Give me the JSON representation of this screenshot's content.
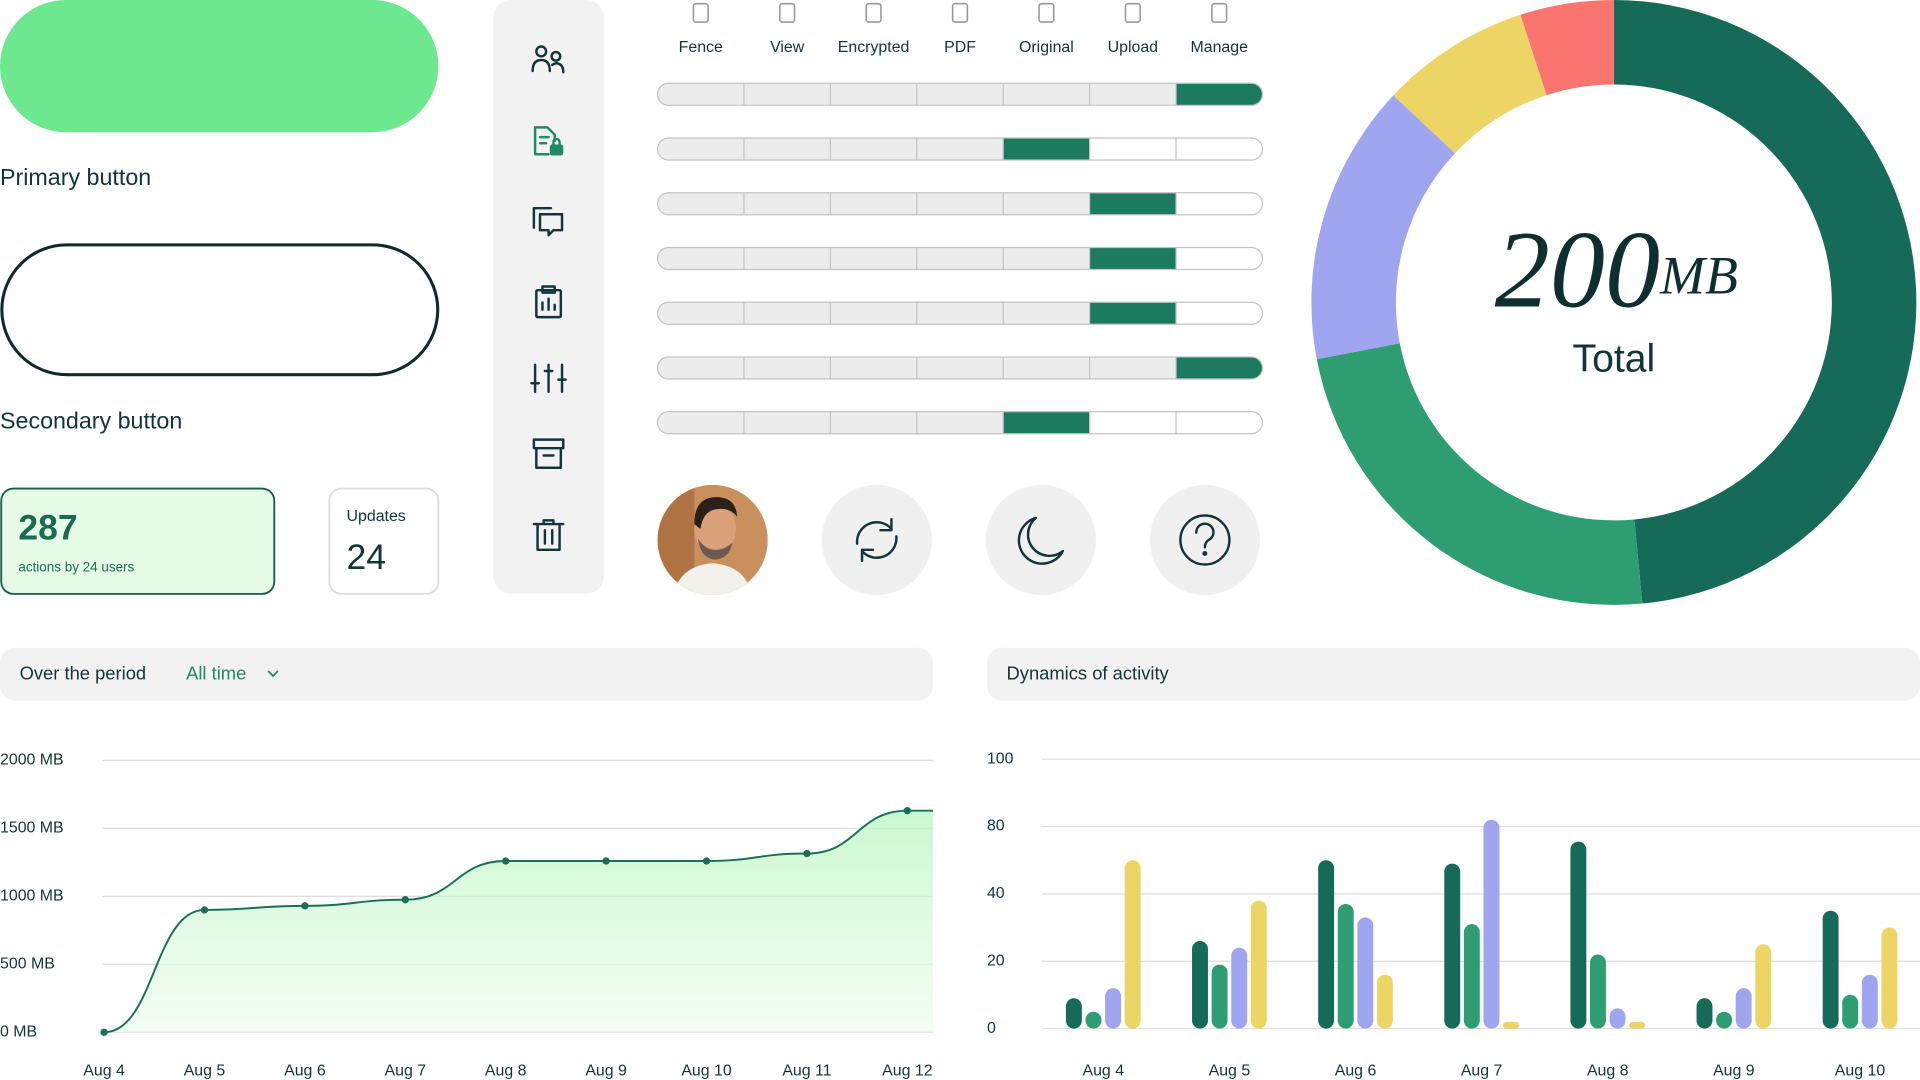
{
  "buttons": {
    "primary": "Primary button",
    "secondary": "Secondary button"
  },
  "stats": {
    "actions": {
      "value": 287,
      "label": "actions by 24 users"
    },
    "updates": {
      "label": "Updates",
      "value": 24
    }
  },
  "permissions": {
    "columns": [
      "Fence",
      "View",
      "Encrypted",
      "PDF",
      "Original",
      "Upload",
      "Manage"
    ],
    "levels": [
      6,
      4,
      5,
      5,
      5,
      6,
      4
    ],
    "color": "#1c7a5e"
  },
  "chart_data": [
    {
      "type": "donut",
      "total": 200,
      "unit": "MB",
      "label": "Total",
      "values": [
        97,
        47,
        30,
        16,
        10
      ],
      "colors": [
        "#156b58",
        "#2e9e72",
        "#a0a5f0",
        "#ecd465",
        "#fb7570"
      ]
    },
    {
      "type": "line",
      "title": "Over the period",
      "filter": "All time",
      "categories": [
        "Aug 4",
        "Aug 5",
        "Aug 6",
        "Aug 7",
        "Aug 8",
        "Aug 9",
        "Aug 10",
        "Aug 11",
        "Aug 12"
      ],
      "series": [
        {
          "color": "#1b6f58",
          "values": [
            0,
            900,
            930,
            975,
            1260,
            1260,
            1260,
            1315,
            1630
          ]
        }
      ],
      "ylim": [
        0,
        2000
      ],
      "yticks": [
        {
          "value": 0,
          "label": "0 MB"
        },
        {
          "value": 500,
          "label": "500 MB"
        },
        {
          "value": 1000,
          "label": "1000 MB"
        },
        {
          "value": 1500,
          "label": "1500 MB"
        },
        {
          "value": 2000,
          "label": "2000 MB"
        }
      ],
      "grid": true
    },
    {
      "type": "bar",
      "title": "Dynamics of activity",
      "categories": [
        "Aug 4",
        "Aug 5",
        "Aug 6",
        "Aug 7",
        "Aug 8",
        "Aug 9",
        "Aug 10"
      ],
      "series": [
        {
          "color": "#156b58",
          "values": [
            9,
            26,
            60,
            58,
            71,
            9,
            35
          ]
        },
        {
          "color": "#2e9e72",
          "values": [
            5,
            19,
            37,
            31,
            22,
            5,
            10
          ]
        },
        {
          "color": "#a0a5f0",
          "values": [
            12,
            24,
            33,
            82,
            6,
            12,
            16
          ]
        },
        {
          "color": "#ecd465",
          "values": [
            60,
            38,
            16,
            2,
            2,
            25,
            30
          ]
        }
      ],
      "ylim": [
        0,
        100
      ],
      "yticks": [
        100,
        80,
        40,
        20,
        0
      ],
      "grid": true
    }
  ]
}
